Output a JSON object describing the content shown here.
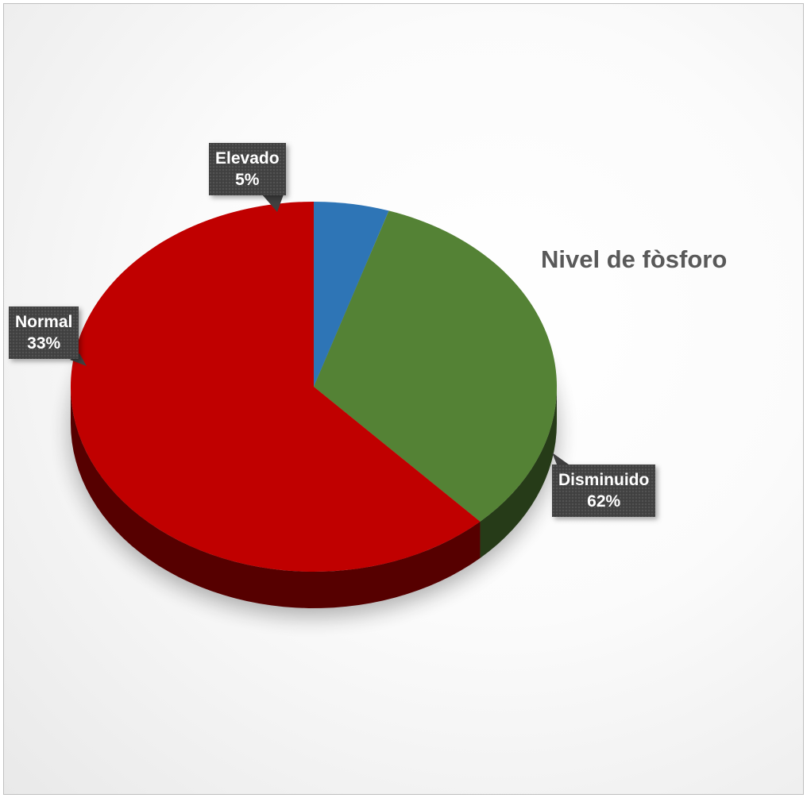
{
  "chart_data": {
    "type": "pie",
    "title": "Nivel de fòsforo",
    "slices": [
      {
        "label": "Elevado",
        "percent_label": "5%",
        "value": 5,
        "color": "#2E75B6"
      },
      {
        "label": "Normal",
        "percent_label": "33%",
        "value": 33,
        "color": "#548235"
      },
      {
        "label": "Disminuido",
        "percent_label": "62%",
        "value": 62,
        "color": "#C00000"
      }
    ],
    "legend": "none",
    "style": "3d-exploded-none"
  }
}
